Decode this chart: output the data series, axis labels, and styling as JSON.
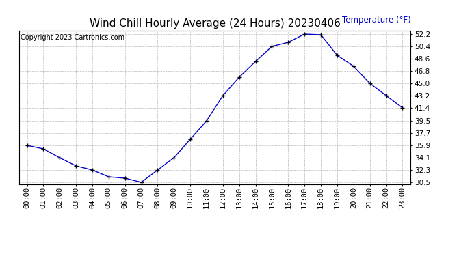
{
  "title": "Wind Chill Hourly Average (24 Hours) 20230406",
  "ylabel": "Temperature (°F)",
  "copyright_text": "Copyright 2023 Cartronics.com",
  "line_color": "#0000cc",
  "marker": "+",
  "marker_color": "#000000",
  "background_color": "#ffffff",
  "grid_color": "#bbbbbb",
  "hours": [
    "00:00",
    "01:00",
    "02:00",
    "03:00",
    "04:00",
    "05:00",
    "06:00",
    "07:00",
    "08:00",
    "09:00",
    "10:00",
    "11:00",
    "12:00",
    "13:00",
    "14:00",
    "15:00",
    "16:00",
    "17:00",
    "18:00",
    "19:00",
    "20:00",
    "21:00",
    "22:00",
    "23:00"
  ],
  "values": [
    35.9,
    35.4,
    34.1,
    32.9,
    32.3,
    31.3,
    31.1,
    30.5,
    32.3,
    34.1,
    36.8,
    39.5,
    43.2,
    45.9,
    48.2,
    50.4,
    51.0,
    52.2,
    52.1,
    49.1,
    47.5,
    45.0,
    43.2,
    41.4
  ],
  "ylim_min": 30.5,
  "ylim_max": 52.2,
  "yticks": [
    30.5,
    32.3,
    34.1,
    35.9,
    37.7,
    39.5,
    41.4,
    43.2,
    45.0,
    46.8,
    48.6,
    50.4,
    52.2
  ],
  "title_fontsize": 11,
  "ylabel_fontsize": 8.5,
  "tick_fontsize": 7.5,
  "copyright_fontsize": 7,
  "ylabel_color": "#0000cc",
  "figwidth": 6.9,
  "figheight": 3.75,
  "dpi": 100
}
